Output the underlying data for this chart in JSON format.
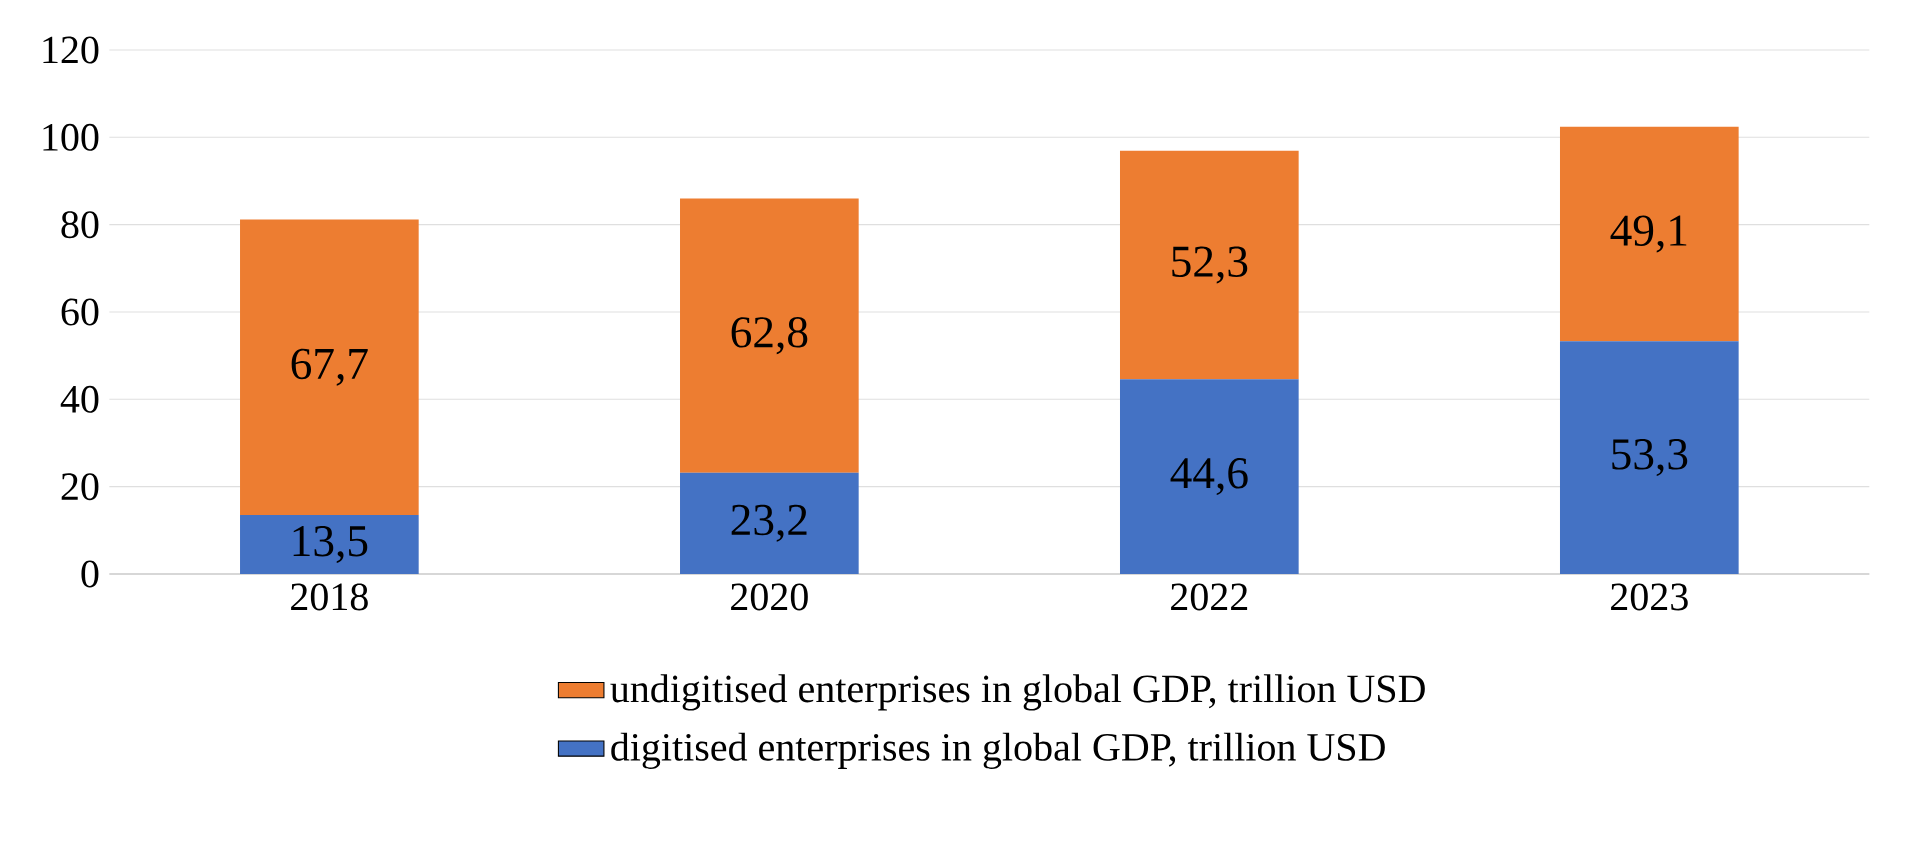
{
  "chart_data": {
    "type": "bar",
    "stacked": true,
    "categories": [
      "2018",
      "2020",
      "2022",
      "2023"
    ],
    "series": [
      {
        "name": "digitised enterprises in global GDP, trillion USD",
        "color": "#4472c4",
        "values": [
          13.5,
          23.2,
          44.6,
          53.3
        ],
        "value_labels": [
          "13,5",
          "23,2",
          "44,6",
          "53,3"
        ]
      },
      {
        "name": "undigitised enterprises in global GDP, trillion USD",
        "color": "#ed7d31",
        "values": [
          67.7,
          62.8,
          52.3,
          49.1
        ],
        "value_labels": [
          "67,7",
          "62,8",
          "52,3",
          "49,1"
        ]
      }
    ],
    "ylim": [
      0,
      120
    ],
    "yticks": [
      0,
      20,
      40,
      60,
      80,
      100,
      120
    ],
    "grid": "y",
    "legend": "bottom"
  }
}
